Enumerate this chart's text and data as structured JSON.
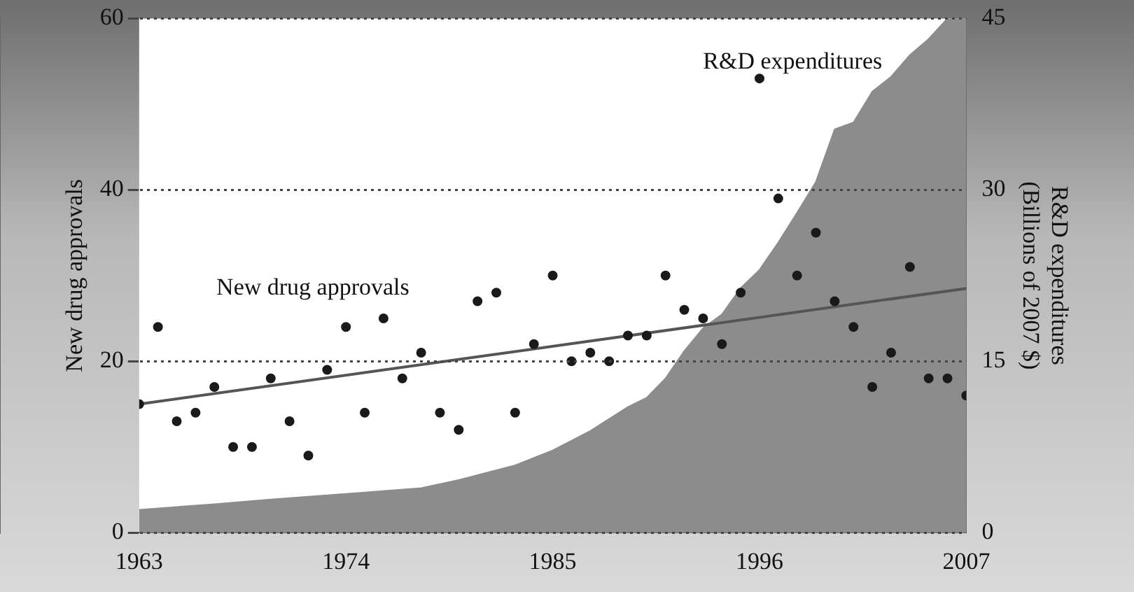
{
  "chart_data": {
    "type": "scatter",
    "ylabel": "New drug approvals",
    "y2label": "R&D expenditures\n(Billions of 2007 $)",
    "x": [
      1963,
      1964,
      1965,
      1966,
      1967,
      1968,
      1969,
      1970,
      1971,
      1972,
      1973,
      1974,
      1975,
      1976,
      1977,
      1978,
      1979,
      1980,
      1981,
      1982,
      1983,
      1984,
      1985,
      1986,
      1987,
      1988,
      1989,
      1990,
      1991,
      1992,
      1993,
      1994,
      1995,
      1996,
      1997,
      1998,
      1999,
      2000,
      2001,
      2002,
      2003,
      2004,
      2005,
      2006,
      2007
    ],
    "series": [
      {
        "type": "area",
        "axis": "y2",
        "color": "#8c8c8c",
        "x": [
          1963,
          1967,
          1970,
          1974,
          1978,
          1980,
          1983,
          1985,
          1987,
          1989,
          1990,
          1991,
          1992,
          1993,
          1994,
          1995,
          1996,
          1997,
          1998,
          1999,
          2000,
          2001,
          2002,
          2003,
          2004,
          2005,
          2006,
          2007
        ],
        "values": [
          2,
          2.5,
          2.9,
          3.4,
          3.9,
          4.6,
          5.9,
          7.2,
          8.9,
          11,
          11.8,
          13.5,
          15.9,
          17.9,
          19.1,
          21.4,
          23,
          25.4,
          28,
          30.7,
          35.3,
          35.9,
          38.6,
          39.9,
          41.8,
          43.2,
          45,
          45
        ]
      },
      {
        "marker": "circle",
        "color": "#1a1a1a",
        "values": [
          15,
          24,
          13,
          14,
          17,
          10,
          10,
          18,
          13,
          9,
          19,
          24,
          14,
          25,
          18,
          21,
          14,
          12,
          27,
          28,
          14,
          22,
          30,
          20,
          21,
          20,
          23,
          23,
          30,
          26,
          25,
          22,
          28,
          53,
          39,
          30,
          35,
          27,
          24,
          17,
          21,
          31,
          18,
          18,
          16
        ]
      },
      {
        "type": "line",
        "color": "#555555",
        "x": [
          1963,
          2007
        ],
        "values": [
          15,
          28.5
        ]
      }
    ],
    "xlim": [
      1963,
      2007
    ],
    "xticks": [
      1963,
      1974,
      1985,
      1996,
      2007
    ],
    "ylim": [
      0,
      60
    ],
    "yticks": [
      0,
      20,
      40,
      60
    ],
    "y2lim": [
      0,
      45
    ],
    "y2ticks": [
      0,
      15,
      30,
      45
    ],
    "annotations": [
      "New drug approvals",
      "R&D expenditures"
    ],
    "grid": "y",
    "legend": false
  }
}
